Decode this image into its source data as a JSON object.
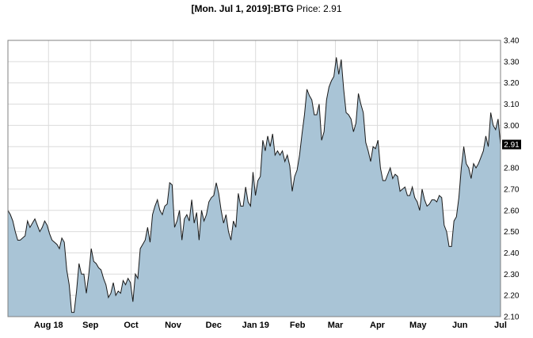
{
  "header": {
    "date_prefix": "[Mon. Jul 1, 2019]:",
    "symbol": "BTG",
    "price_label": " Price: ",
    "price": "2.91"
  },
  "colors": {
    "area_fill": "#a9c4d6",
    "line": "#1a1a1a",
    "grid": "#dcdcdc",
    "border": "#808080",
    "label_box": "#000000",
    "label_text": "#ffffff"
  },
  "chart_data": {
    "type": "area",
    "title": "[Mon. Jul 1, 2019]:BTG Price: 2.91",
    "xlabel": "",
    "ylabel": "",
    "ylim": [
      2.1,
      3.4
    ],
    "yticks": [
      2.1,
      2.2,
      2.3,
      2.4,
      2.5,
      2.6,
      2.7,
      2.8,
      2.9,
      3.0,
      3.1,
      3.2,
      3.3,
      3.4
    ],
    "xticks": [
      "Aug 18",
      "Sep",
      "Oct",
      "Nov",
      "Dec",
      "Jan 19",
      "Feb",
      "Mar",
      "Apr",
      "May",
      "Jun",
      "Jul"
    ],
    "date_range": [
      "2018-07-02",
      "2019-07-01"
    ],
    "grid": true,
    "last_value": 2.91,
    "last_value_label": "2.91",
    "series": [
      {
        "values": [
          2.6,
          2.58,
          2.55,
          2.5,
          2.46,
          2.46,
          2.47,
          2.48,
          2.55,
          2.52,
          2.54,
          2.56,
          2.53,
          2.5,
          2.52,
          2.55,
          2.53,
          2.49,
          2.46,
          2.45,
          2.44,
          2.42,
          2.47,
          2.45,
          2.32,
          2.25,
          2.12,
          2.12,
          2.22,
          2.35,
          2.3,
          2.3,
          2.21,
          2.3,
          2.42,
          2.36,
          2.35,
          2.33,
          2.32,
          2.28,
          2.25,
          2.19,
          2.21,
          2.26,
          2.2,
          2.22,
          2.21,
          2.27,
          2.25,
          2.28,
          2.26,
          2.17,
          2.3,
          2.28,
          2.42,
          2.44,
          2.46,
          2.52,
          2.45,
          2.58,
          2.62,
          2.65,
          2.6,
          2.58,
          2.62,
          2.63,
          2.73,
          2.72,
          2.52,
          2.55,
          2.6,
          2.46,
          2.56,
          2.58,
          2.55,
          2.65,
          2.54,
          2.59,
          2.46,
          2.6,
          2.55,
          2.58,
          2.64,
          2.66,
          2.67,
          2.73,
          2.68,
          2.6,
          2.54,
          2.58,
          2.5,
          2.46,
          2.55,
          2.52,
          2.68,
          2.62,
          2.62,
          2.71,
          2.64,
          2.62,
          2.78,
          2.67,
          2.74,
          2.76,
          2.93,
          2.88,
          2.95,
          2.9,
          2.96,
          2.86,
          2.88,
          2.86,
          2.88,
          2.83,
          2.86,
          2.81,
          2.69,
          2.76,
          2.79,
          2.86,
          2.96,
          3.05,
          3.17,
          3.14,
          3.12,
          3.05,
          3.05,
          3.1,
          2.93,
          2.97,
          3.12,
          3.18,
          3.21,
          3.23,
          3.32,
          3.24,
          3.31,
          3.17,
          3.06,
          3.05,
          3.03,
          2.97,
          3.01,
          3.15,
          3.1,
          3.06,
          2.92,
          2.88,
          2.83,
          2.9,
          2.89,
          2.93,
          2.8,
          2.74,
          2.74,
          2.77,
          2.8,
          2.75,
          2.77,
          2.76,
          2.69,
          2.7,
          2.71,
          2.67,
          2.67,
          2.71,
          2.66,
          2.64,
          2.6,
          2.7,
          2.65,
          2.62,
          2.63,
          2.65,
          2.65,
          2.64,
          2.67,
          2.66,
          2.53,
          2.5,
          2.43,
          2.43,
          2.55,
          2.57,
          2.66,
          2.8,
          2.9,
          2.82,
          2.8,
          2.75,
          2.82,
          2.8,
          2.82,
          2.85,
          2.88,
          2.95,
          2.9,
          3.06,
          3.0,
          2.98,
          3.03,
          2.91
        ]
      }
    ]
  }
}
